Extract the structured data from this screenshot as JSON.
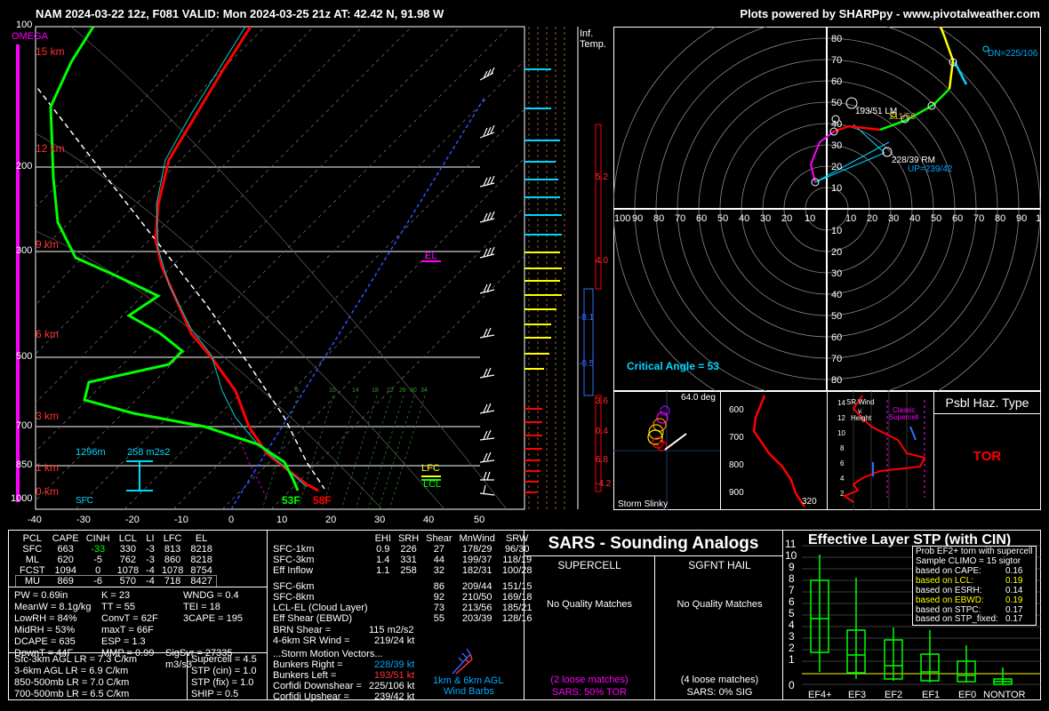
{
  "header": {
    "title": "NAM 2024-03-22 12z, F081  VALID: Mon 2024-03-25 21z  AT: 42.42 N, 91.98 W",
    "credit": "Plots powered by SHARPpy - www.pivotalweather.com"
  },
  "colors": {
    "temperature": "#ff0000",
    "dewpoint": "#00ff00",
    "virtual_temp": "#00d0d0",
    "parcel": "#ffffff",
    "height_label": "#ff3030",
    "omega": "#ff00ff",
    "cyan_text": "#00d8ff",
    "yellow": "#ffff00"
  },
  "skewt": {
    "omega_label": "OMEGA",
    "pressure_labels": [
      "100",
      "200",
      "300",
      "500",
      "700",
      "850",
      "1000"
    ],
    "temp_labels": [
      "-40",
      "-30",
      "-20",
      "-10",
      "0",
      "10",
      "20",
      "30",
      "40",
      "50"
    ],
    "height_labels": [
      "15 km",
      "12 km",
      "9 km",
      "6 km",
      "3 km",
      "1 km",
      "0 km"
    ],
    "mixing_ratio_labels": [
      "6",
      "10",
      "14",
      "18",
      "22",
      "26",
      "30",
      "34"
    ],
    "el_label": "EL",
    "lfc_label": "LFC",
    "lcl_label": "LCL",
    "sfc_label": "SFC",
    "sfc_temp": "58F",
    "sfc_dewpoint": "53F",
    "effective_inflow_base": "1296m",
    "effective_inflow_srh": "258 m2s2"
  },
  "inferred_temp": {
    "title_line1": "Inf.",
    "title_line2": "Temp.",
    "values": [
      "5.2",
      "4.0",
      "-8.1",
      "-0.5",
      "3.6",
      "0.4",
      "6.8",
      "-4.2"
    ]
  },
  "hodograph": {
    "labels_pos": [
      "10",
      "20",
      "30",
      "40",
      "50",
      "60",
      "70",
      "80"
    ],
    "labels_h": [
      "100",
      "90",
      "80",
      "70",
      "60",
      "50",
      "40",
      "30",
      "20",
      "10",
      "10",
      "20",
      "30",
      "40",
      "50",
      "60",
      "70",
      "80",
      "90",
      "1"
    ],
    "dn": "DN=225/106",
    "lm": "193/51 LM",
    "mean": "211/56",
    "rm": "228/39 RM",
    "up": "UP=239/42",
    "critical_angle": "Critical Angle = 53"
  },
  "slinky": {
    "label": "Storm Slinky",
    "deg": "64.0 deg"
  },
  "theta_e": {
    "labels": [
      "600",
      "700",
      "800",
      "900"
    ],
    "bottom": "320"
  },
  "srwind": {
    "title1": "SR Wind",
    "title2": "v.",
    "title3": "Height",
    "classic1": "Classic",
    "classic2": "Supercell",
    "yticks": [
      "14",
      "12",
      "10",
      "8",
      "6",
      "4",
      "2"
    ]
  },
  "haz": {
    "title": "Psbl Haz. Type",
    "value": "TOR"
  },
  "parcel_table": {
    "headers": [
      "PCL",
      "CAPE",
      "CINH",
      "LCL",
      "LI",
      "LFC",
      "EL"
    ],
    "rows": [
      [
        "SFC",
        "663",
        "-33",
        "330",
        "-3",
        "813",
        "8218"
      ],
      [
        "ML",
        "620",
        "-5",
        "762",
        "-3",
        "860",
        "8218"
      ],
      [
        "FCST",
        "1094",
        "0",
        "1078",
        "-4",
        "1078",
        "8754"
      ],
      [
        "MU",
        "869",
        "-6",
        "570",
        "-4",
        "718",
        "8427"
      ]
    ]
  },
  "indices": {
    "col1": [
      "PW = 0.69in",
      "MeanW = 8.1g/kg",
      "LowRH = 84%",
      "MidRH = 53%",
      "DCAPE = 635",
      "DownT = 44F"
    ],
    "col2": [
      "K = 23",
      "TT = 55",
      "ConvT = 62F",
      "maxT = 66F",
      "ESP = 1.3",
      "MMP = 0.99"
    ],
    "col3": [
      "WNDG = 0.4",
      "TEI = 18",
      "3CAPE = 195",
      "",
      "",
      "SigSvr = 27335 m3/s3"
    ],
    "lapse": [
      "Sfc-3km AGL LR = 7.3 C/km",
      "3-6km AGL LR = 6.9 C/km",
      "850-500mb LR = 7.0 C/km",
      "700-500mb LR = 6.5 C/km"
    ],
    "comp": [
      "Supercell = 4.5",
      "STP (cin) = 1.0",
      "STP (fix) = 1.0",
      "SHIP = 0.5"
    ]
  },
  "kin_table": {
    "headers": [
      "",
      "EHI",
      "SRH",
      "Shear",
      "MnWind",
      "SRW"
    ],
    "rows": [
      [
        "SFC-1km",
        "0.9",
        "226",
        "27",
        "178/29",
        "96/30"
      ],
      [
        "SFC-3km",
        "1.4",
        "331",
        "44",
        "199/37",
        "118/19"
      ],
      [
        "Eff Inflow",
        "1.1",
        "258",
        "32",
        "182/31",
        "100/28"
      ],
      [
        "",
        "",
        "",
        "",
        "",
        ""
      ],
      [
        "SFC-6km",
        "",
        "",
        "86",
        "209/44",
        "151/15"
      ],
      [
        "SFC-8km",
        "",
        "",
        "92",
        "210/50",
        "169/18"
      ],
      [
        "LCL-EL (Cloud Layer)",
        "",
        "",
        "73",
        "213/56",
        "185/21"
      ],
      [
        "Eff Shear (EBWD)",
        "",
        "",
        "55",
        "203/39",
        "128/16"
      ]
    ],
    "brn_label": "BRN Shear =",
    "brn": "115 m2/s2",
    "srw_label": "4-6km SR Wind =",
    "srw": "219/24 kt",
    "motion_title": "...Storm Motion Vectors...",
    "motion": [
      [
        "Bunkers Right =",
        "228/39 kt"
      ],
      [
        "Bunkers Left =",
        "193/51 kt"
      ],
      [
        "Corfidi Downshear =",
        "225/106 kt"
      ],
      [
        "Corfidi Upshear =",
        "239/42 kt"
      ]
    ],
    "barb_label1": "1km & 6km AGL",
    "barb_label2": "Wind Barbs"
  },
  "sars": {
    "title": "SARS - Sounding Analogs",
    "supercell": "SUPERCELL",
    "hail": "SGFNT HAIL",
    "no_match_left": "No Quality Matches",
    "no_match_right": "No Quality Matches",
    "loose_left": "(2 loose matches)",
    "loose_right": "(4 loose matches)",
    "pct_left": "SARS: 50% TOR",
    "pct_right": "SARS: 0% SIG"
  },
  "stp": {
    "title": "Effective Layer STP (with CIN)",
    "yticks": [
      "11",
      "10",
      "9",
      "8",
      "7",
      "6",
      "5",
      "4",
      "3",
      "2",
      "1",
      "0"
    ],
    "categories": [
      "EF4+",
      "EF3",
      "EF2",
      "EF1",
      "EF0",
      "NONTOR"
    ],
    "legend": [
      [
        "Prob EF2+ torn with supercell",
        ""
      ],
      [
        "Sample CLIMO = 15 sigtor",
        ""
      ],
      [
        "based on CAPE:",
        "0.16"
      ],
      [
        "based on LCL:",
        "0.19"
      ],
      [
        "based on ESRH:",
        "0.14"
      ],
      [
        "based on EBWD:",
        "0.19"
      ],
      [
        "based on STPC:",
        "0.17"
      ],
      [
        "based on STP_fixed:",
        "0.17"
      ]
    ]
  }
}
